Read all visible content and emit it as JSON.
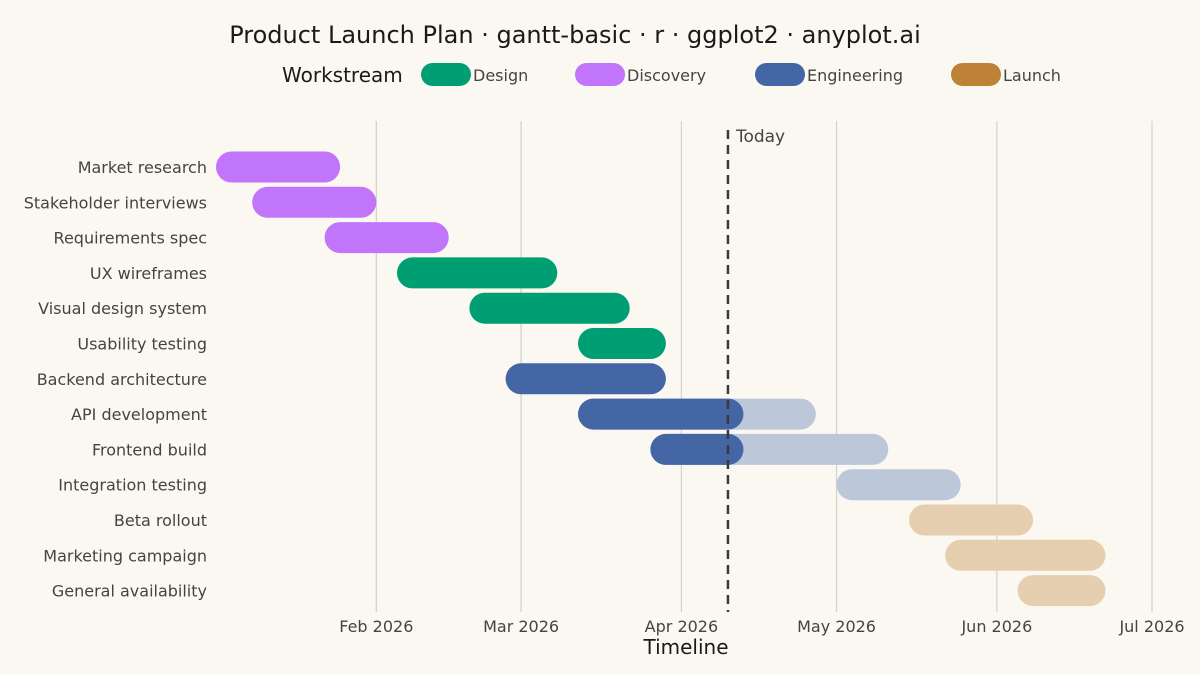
{
  "chart_data": {
    "type": "gantt",
    "title": "Product Launch Plan · gantt-basic · r · ggplot2 · anyplot.ai",
    "xlabel": "Timeline",
    "ylabel": "",
    "x_range": [
      "2026-01-01",
      "2026-07-01"
    ],
    "x_ticks": [
      {
        "date": "2026-02-01",
        "label": "Feb 2026"
      },
      {
        "date": "2026-03-01",
        "label": "Mar 2026"
      },
      {
        "date": "2026-04-01",
        "label": "Apr 2026"
      },
      {
        "date": "2026-05-01",
        "label": "May 2026"
      },
      {
        "date": "2026-06-01",
        "label": "Jun 2026"
      },
      {
        "date": "2026-07-01",
        "label": "Jul 2026"
      }
    ],
    "grid": true,
    "today": {
      "date": "2026-04-10",
      "label": "Today"
    },
    "legend": {
      "title": "Workstream",
      "position": "top",
      "entries": [
        {
          "name": "Design",
          "color": "#009e73"
        },
        {
          "name": "Discovery",
          "color": "#c075fb"
        },
        {
          "name": "Engineering",
          "color": "#4466a5"
        },
        {
          "name": "Launch",
          "color": "#bd8235"
        }
      ]
    },
    "colors_future": {
      "Design": "#b3e2d5",
      "Discovery": "#ead1fd",
      "Engineering": "#bcc7da",
      "Launch": "#e6cfb0"
    },
    "tasks": [
      {
        "name": "Market research",
        "group": "Discovery",
        "start": "2026-01-01",
        "end": "2026-01-25"
      },
      {
        "name": "Stakeholder interviews",
        "group": "Discovery",
        "start": "2026-01-08",
        "end": "2026-02-01"
      },
      {
        "name": "Requirements spec",
        "group": "Discovery",
        "start": "2026-01-22",
        "end": "2026-02-15"
      },
      {
        "name": "UX wireframes",
        "group": "Design",
        "start": "2026-02-05",
        "end": "2026-03-08"
      },
      {
        "name": "Visual design system",
        "group": "Design",
        "start": "2026-02-19",
        "end": "2026-03-22"
      },
      {
        "name": "Usability testing",
        "group": "Design",
        "start": "2026-03-12",
        "end": "2026-03-29"
      },
      {
        "name": "Backend architecture",
        "group": "Engineering",
        "start": "2026-02-26",
        "end": "2026-03-29"
      },
      {
        "name": "API development",
        "group": "Engineering",
        "start": "2026-03-12",
        "end": "2026-04-27"
      },
      {
        "name": "Frontend build",
        "group": "Engineering",
        "start": "2026-03-26",
        "end": "2026-05-11"
      },
      {
        "name": "Integration testing",
        "group": "Engineering",
        "start": "2026-05-01",
        "end": "2026-05-25"
      },
      {
        "name": "Beta rollout",
        "group": "Launch",
        "start": "2026-05-15",
        "end": "2026-06-08"
      },
      {
        "name": "Marketing campaign",
        "group": "Launch",
        "start": "2026-05-22",
        "end": "2026-06-22"
      },
      {
        "name": "General availability",
        "group": "Launch",
        "start": "2026-06-05",
        "end": "2026-06-22"
      }
    ]
  }
}
